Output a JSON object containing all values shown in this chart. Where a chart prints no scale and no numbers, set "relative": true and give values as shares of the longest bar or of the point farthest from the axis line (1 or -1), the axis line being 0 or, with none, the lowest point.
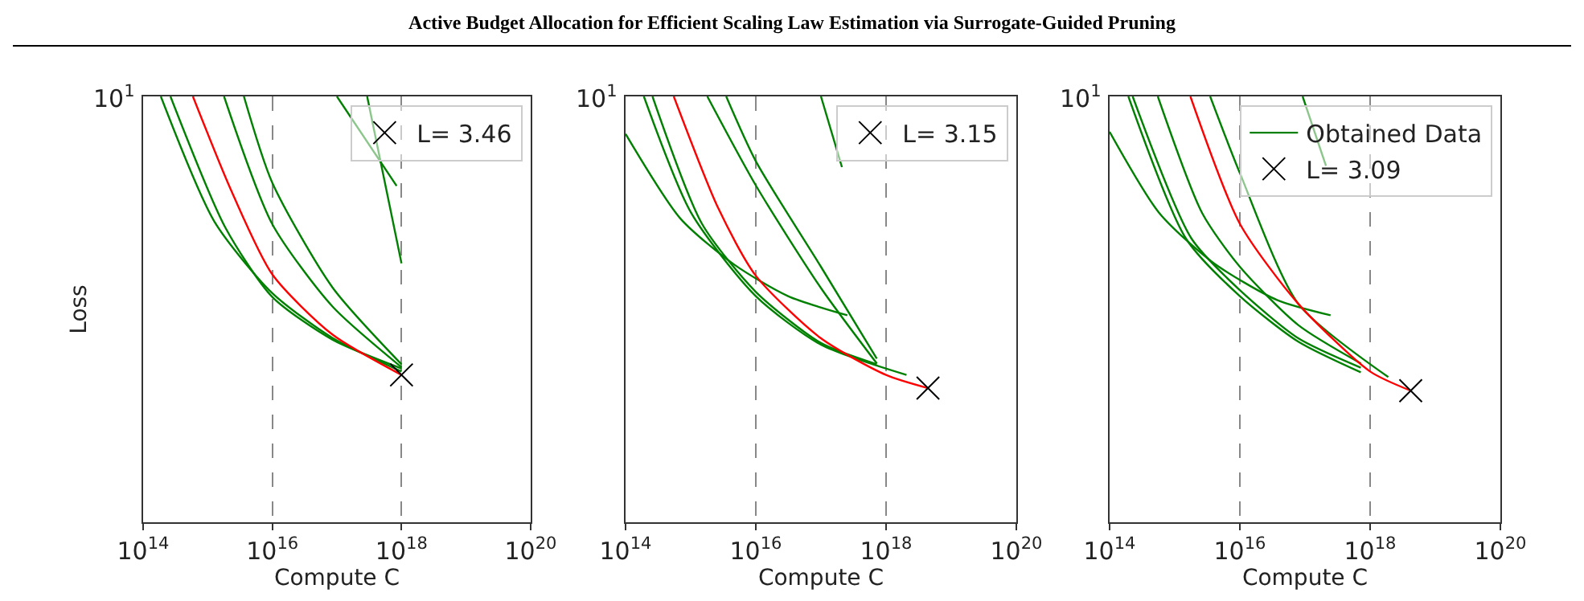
{
  "chart_data": [
    {
      "type": "line",
      "title": "Active Budget Allocation for Efficient Scaling Law Estimation via Surrogate-Guided Pruning",
      "xlabel": "Compute C",
      "ylabel": "Loss",
      "log": "x",
      "grid": "x",
      "legend": "top right",
      "relative": true,
      "annotations": [
        "10$^{1}$"
      ],
      "xlim": [
        100000000000000.0,
        1e+20
      ],
      "xticks": [
        {
          "value": 100000000000000.0,
          "label": "10$^{14}$"
        },
        {
          "value": 1e+16,
          "label": "10$^{16}$"
        },
        {
          "value": 1e+18,
          "label": "10$^{18}$"
        },
        {
          "value": 1e+20,
          "label": "10$^{20}$"
        }
      ],
      "series": [
        {
          "color": "#008000",
          "x": [
            188000000000000.0,
            1270000000000000.0,
            1e+16,
            8.5e+16,
            1e+18
          ],
          "values": [
            1,
            0.706,
            0.538,
            0.433,
            0.354
          ]
        },
        {
          "color": "#008000",
          "x": [
            265000000000000.0,
            1860000000000000.0,
            1e+16,
            8.5e+16,
            1e+18
          ],
          "values": [
            1,
            0.693,
            0.529,
            0.429,
            0.361
          ]
        },
        {
          "color": "#008000",
          "x": [
            1790000000000000.0,
            1e+16,
            8.5e+16,
            1e+18
          ],
          "values": [
            1,
            0.7,
            0.507,
            0.364
          ]
        },
        {
          "color": "#008000",
          "x": [
            3630000000000000.0,
            1e+16,
            8.5e+16,
            1e+18
          ],
          "values": [
            1,
            0.797,
            0.552,
            0.371
          ]
        },
        {
          "color": "#008000",
          "x": [
            1e+17,
            8.4e+17
          ],
          "values": [
            1,
            0.79
          ]
        },
        {
          "color": "#008000",
          "x": [
            2.94e+17,
            1e+18
          ],
          "values": [
            1,
            0.608
          ]
        },
        {
          "color": "#ff0000",
          "x": [
            590000000000000.0,
            2250000000000000.0,
            1e+16,
            8.5e+16,
            1e+18
          ],
          "values": [
            1,
            0.783,
            0.582,
            0.441,
            0.346
          ]
        },
        {
          "type": "scatter",
          "marker": "cross",
          "name": "L= 3.46",
          "color": "#000000",
          "x": [
            1e+18
          ],
          "values": [
            0.346
          ]
        }
      ]
    },
    {
      "type": "line",
      "xlabel": "Compute C",
      "log": "x",
      "grid": "x",
      "legend": "top right",
      "relative": true,
      "annotations": [
        "10$^{1}$"
      ],
      "xlim": [
        100000000000000.0,
        1e+20
      ],
      "xticks": [
        {
          "value": 100000000000000.0,
          "label": "10$^{14}$"
        },
        {
          "value": 1e+16,
          "label": "10$^{16}$"
        },
        {
          "value": 1e+18,
          "label": "10$^{18}$"
        },
        {
          "value": 1e+20,
          "label": "10$^{20}$"
        }
      ],
      "series": [
        {
          "color": "#008000",
          "x": [
            100000000000000.0,
            697000000000000.0,
            4670000000000000.0,
            3.13e+16,
            2.54e+17
          ],
          "values": [
            0.912,
            0.713,
            0.605,
            0.531,
            0.486
          ]
        },
        {
          "color": "#008000",
          "x": [
            191000000000000.0,
            1020000000000000.0,
            1e+16,
            1e+17,
            2.06e+18
          ],
          "values": [
            1,
            0.726,
            0.531,
            0.417,
            0.346
          ]
        },
        {
          "color": "#008000",
          "x": [
            259000000000000.0,
            1490000000000000.0,
            1e+16,
            1e+17,
            7.2e+17
          ],
          "values": [
            1,
            0.701,
            0.541,
            0.421,
            0.371
          ]
        },
        {
          "color": "#008000",
          "x": [
            1800000000000000.0,
            1e+16,
            1e+17,
            7.2e+17
          ],
          "values": [
            1,
            0.791,
            0.55,
            0.373
          ]
        },
        {
          "color": "#008000",
          "x": [
            3510000000000000.0,
            1e+16,
            1e+17,
            7.2e+17
          ],
          "values": [
            1,
            0.848,
            0.6,
            0.384
          ]
        },
        {
          "color": "#008000",
          "x": [
            1e+17,
            2.1e+17
          ],
          "values": [
            1,
            0.834
          ]
        },
        {
          "color": "#ff0000",
          "x": [
            550000000000000.0,
            2640000000000000.0,
            1e+16,
            1e+17,
            1e+18,
            4.4e+18
          ],
          "values": [
            1,
            0.738,
            0.579,
            0.432,
            0.346,
            0.315
          ]
        },
        {
          "type": "scatter",
          "marker": "cross",
          "name": "L= 3.15",
          "color": "#000000",
          "x": [
            4.4e+18
          ],
          "values": [
            0.315
          ]
        }
      ]
    },
    {
      "type": "line",
      "xlabel": "Compute C",
      "log": "x",
      "grid": "x",
      "legend": "top right",
      "relative": true,
      "annotations": [
        "10$^{1}$"
      ],
      "xlim": [
        100000000000000.0,
        1e+20
      ],
      "xticks": [
        {
          "value": 100000000000000.0,
          "label": "10$^{14}$"
        },
        {
          "value": 1e+16,
          "label": "10$^{16}$"
        },
        {
          "value": 1e+18,
          "label": "10$^{18}$"
        },
        {
          "value": 1e+20,
          "label": "10$^{20}$"
        }
      ],
      "series": [
        {
          "name": "Obtained Data",
          "color": "#008000",
          "x": [
            194000000000000.0,
            1490000000000000.0,
            1e+16,
            7.9e+16,
            7.2e+17
          ],
          "values": [
            1,
            0.666,
            0.531,
            0.424,
            0.352
          ]
        },
        {
          "color": "#008000",
          "x": [
            100000000000000.0,
            580000000000000.0,
            3850000000000000.0,
            3.72e+16,
            2.47e+17
          ],
          "values": [
            0.917,
            0.726,
            0.61,
            0.522,
            0.486
          ]
        },
        {
          "color": "#008000",
          "x": [
            226000000000000.0,
            1810000000000000.0,
            1e+16,
            7.9e+16,
            7.2e+17
          ],
          "values": [
            1,
            0.666,
            0.545,
            0.432,
            0.363
          ]
        },
        {
          "color": "#008000",
          "x": [
            550000000000000.0,
            2640000000000000.0,
            1e+16,
            7.9e+16,
            7.2e+17
          ],
          "values": [
            1,
            0.726,
            0.6,
            0.463,
            0.373
          ]
        },
        {
          "color": "#008000",
          "x": [
            3500000000000000.0,
            1e+16,
            7.9e+16,
            1.9e+18
          ],
          "values": [
            1,
            0.82,
            0.513,
            0.341
          ]
        },
        {
          "color": "#008000",
          "x": [
            9.2e+16,
            2.1e+17
          ],
          "values": [
            1,
            0.837
          ]
        },
        {
          "color": "#ff0000",
          "x": [
            1740000000000000.0,
            1e+16,
            7.9e+16,
            1e+18,
            4.2e+18
          ],
          "values": [
            1,
            0.701,
            0.513,
            0.354,
            0.309
          ]
        },
        {
          "type": "scatter",
          "marker": "cross",
          "name": "L= 3.09",
          "color": "#000000",
          "x": [
            4.2e+18
          ],
          "values": [
            0.309
          ]
        }
      ]
    }
  ]
}
